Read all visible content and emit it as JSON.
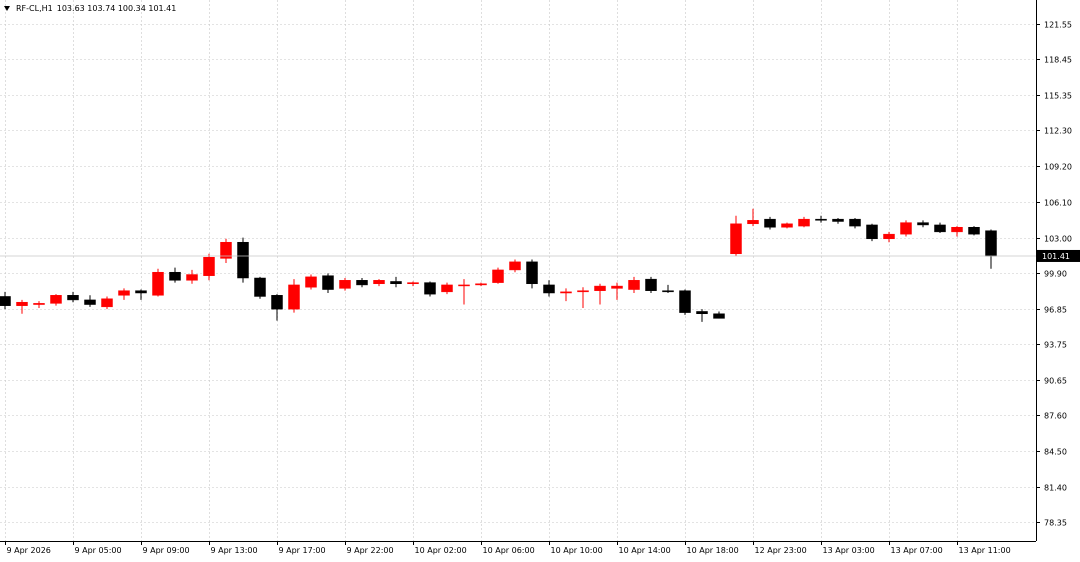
{
  "header": {
    "symbol": "RF-CL,H1",
    "ohlc": "103.63 103.74 100.34 101.41"
  },
  "colors": {
    "bull": "#ff0000",
    "bear": "#000000",
    "grid": "#c8c8c8",
    "background": "#ffffff"
  },
  "chart_data": {
    "type": "candlestick",
    "title": "",
    "xlabel": "",
    "ylabel": "",
    "ylim": [
      76.7,
      123.6
    ],
    "yticks": [
      "121.55",
      "118.45",
      "115.35",
      "112.30",
      "109.20",
      "106.10",
      "103.00",
      "99.90",
      "96.85",
      "93.75",
      "90.65",
      "87.60",
      "84.50",
      "81.40",
      "78.35"
    ],
    "xticks": [
      {
        "label": "9 Apr 2026",
        "index": 0
      },
      {
        "label": "9 Apr 05:00",
        "index": 4
      },
      {
        "label": "9 Apr 09:00",
        "index": 8
      },
      {
        "label": "9 Apr 13:00",
        "index": 12
      },
      {
        "label": "9 Apr 17:00",
        "index": 16
      },
      {
        "label": "9 Apr 22:00",
        "index": 20
      },
      {
        "label": "10 Apr 02:00",
        "index": 24
      },
      {
        "label": "10 Apr 06:00",
        "index": 28
      },
      {
        "label": "10 Apr 10:00",
        "index": 32
      },
      {
        "label": "10 Apr 14:00",
        "index": 36
      },
      {
        "label": "10 Apr 18:00",
        "index": 40
      },
      {
        "label": "12 Apr 23:00",
        "index": 44
      },
      {
        "label": "13 Apr 03:00",
        "index": 48
      },
      {
        "label": "13 Apr 07:00",
        "index": 52
      },
      {
        "label": "13 Apr 11:00",
        "index": 56
      }
    ],
    "current_price": "101.41",
    "candles": [
      {
        "o": 97.9,
        "h": 98.3,
        "l": 96.8,
        "c": 97.1
      },
      {
        "o": 97.1,
        "h": 97.6,
        "l": 96.4,
        "c": 97.4
      },
      {
        "o": 97.2,
        "h": 97.5,
        "l": 96.9,
        "c": 97.3
      },
      {
        "o": 97.3,
        "h": 98.1,
        "l": 97.1,
        "c": 98.0
      },
      {
        "o": 98.0,
        "h": 98.3,
        "l": 97.4,
        "c": 97.6
      },
      {
        "o": 97.6,
        "h": 98.0,
        "l": 97.0,
        "c": 97.2
      },
      {
        "o": 97.0,
        "h": 97.9,
        "l": 96.8,
        "c": 97.7
      },
      {
        "o": 98.0,
        "h": 98.6,
        "l": 97.6,
        "c": 98.4
      },
      {
        "o": 98.4,
        "h": 98.5,
        "l": 97.6,
        "c": 98.2
      },
      {
        "o": 98.0,
        "h": 100.3,
        "l": 97.9,
        "c": 100.0
      },
      {
        "o": 100.0,
        "h": 100.4,
        "l": 99.1,
        "c": 99.3
      },
      {
        "o": 99.3,
        "h": 100.2,
        "l": 99.0,
        "c": 99.8
      },
      {
        "o": 99.7,
        "h": 101.6,
        "l": 99.3,
        "c": 101.3
      },
      {
        "o": 101.2,
        "h": 102.9,
        "l": 100.8,
        "c": 102.6
      },
      {
        "o": 102.6,
        "h": 103.0,
        "l": 99.1,
        "c": 99.5
      },
      {
        "o": 99.5,
        "h": 99.6,
        "l": 97.7,
        "c": 97.9
      },
      {
        "o": 98.0,
        "h": 98.1,
        "l": 95.8,
        "c": 96.8
      },
      {
        "o": 96.8,
        "h": 99.4,
        "l": 96.5,
        "c": 98.9
      },
      {
        "o": 98.7,
        "h": 99.8,
        "l": 98.5,
        "c": 99.6
      },
      {
        "o": 99.7,
        "h": 99.9,
        "l": 98.2,
        "c": 98.5
      },
      {
        "o": 98.6,
        "h": 99.5,
        "l": 98.4,
        "c": 99.3
      },
      {
        "o": 99.3,
        "h": 99.5,
        "l": 98.7,
        "c": 98.9
      },
      {
        "o": 99.0,
        "h": 99.4,
        "l": 98.8,
        "c": 99.3
      },
      {
        "o": 99.2,
        "h": 99.6,
        "l": 98.7,
        "c": 99.0
      },
      {
        "o": 99.0,
        "h": 99.2,
        "l": 98.8,
        "c": 99.1
      },
      {
        "o": 99.1,
        "h": 99.2,
        "l": 97.9,
        "c": 98.1
      },
      {
        "o": 98.3,
        "h": 99.1,
        "l": 98.1,
        "c": 98.9
      },
      {
        "o": 98.9,
        "h": 99.4,
        "l": 97.2,
        "c": 98.9
      },
      {
        "o": 98.9,
        "h": 99.1,
        "l": 98.8,
        "c": 99.0
      },
      {
        "o": 99.1,
        "h": 100.4,
        "l": 99.0,
        "c": 100.2
      },
      {
        "o": 100.2,
        "h": 101.1,
        "l": 100.0,
        "c": 100.9
      },
      {
        "o": 100.9,
        "h": 101.1,
        "l": 98.6,
        "c": 99.0
      },
      {
        "o": 98.9,
        "h": 99.3,
        "l": 97.9,
        "c": 98.2
      },
      {
        "o": 98.2,
        "h": 98.6,
        "l": 97.5,
        "c": 98.3
      },
      {
        "o": 98.3,
        "h": 98.7,
        "l": 96.9,
        "c": 98.4
      },
      {
        "o": 98.4,
        "h": 99.0,
        "l": 97.2,
        "c": 98.8
      },
      {
        "o": 98.6,
        "h": 99.1,
        "l": 97.6,
        "c": 98.8
      },
      {
        "o": 98.5,
        "h": 99.6,
        "l": 98.2,
        "c": 99.3
      },
      {
        "o": 99.4,
        "h": 99.6,
        "l": 98.2,
        "c": 98.4
      },
      {
        "o": 98.4,
        "h": 98.9,
        "l": 98.2,
        "c": 98.3
      },
      {
        "o": 98.4,
        "h": 98.5,
        "l": 96.3,
        "c": 96.5
      },
      {
        "o": 96.6,
        "h": 96.8,
        "l": 95.7,
        "c": 96.4
      },
      {
        "o": 96.4,
        "h": 96.6,
        "l": 96.0,
        "c": 96.0
      },
      {
        "o": 101.6,
        "h": 104.9,
        "l": 101.4,
        "c": 104.2
      },
      {
        "o": 104.2,
        "h": 105.5,
        "l": 104.0,
        "c": 104.5
      },
      {
        "o": 104.6,
        "h": 104.8,
        "l": 103.7,
        "c": 103.9
      },
      {
        "o": 103.9,
        "h": 104.3,
        "l": 103.8,
        "c": 104.2
      },
      {
        "o": 104.0,
        "h": 104.8,
        "l": 103.9,
        "c": 104.6
      },
      {
        "o": 104.6,
        "h": 104.9,
        "l": 104.3,
        "c": 104.5
      },
      {
        "o": 104.6,
        "h": 104.7,
        "l": 104.2,
        "c": 104.4
      },
      {
        "o": 104.6,
        "h": 104.7,
        "l": 103.8,
        "c": 104.0
      },
      {
        "o": 104.1,
        "h": 104.2,
        "l": 102.7,
        "c": 102.9
      },
      {
        "o": 102.9,
        "h": 103.5,
        "l": 102.6,
        "c": 103.3
      },
      {
        "o": 103.3,
        "h": 104.5,
        "l": 103.1,
        "c": 104.3
      },
      {
        "o": 104.3,
        "h": 104.5,
        "l": 103.9,
        "c": 104.1
      },
      {
        "o": 104.1,
        "h": 104.3,
        "l": 103.4,
        "c": 103.5
      },
      {
        "o": 103.5,
        "h": 104.0,
        "l": 103.1,
        "c": 103.9
      },
      {
        "o": 103.9,
        "h": 104.0,
        "l": 103.2,
        "c": 103.3
      },
      {
        "o": 103.6,
        "h": 103.7,
        "l": 100.3,
        "c": 101.4
      }
    ]
  }
}
